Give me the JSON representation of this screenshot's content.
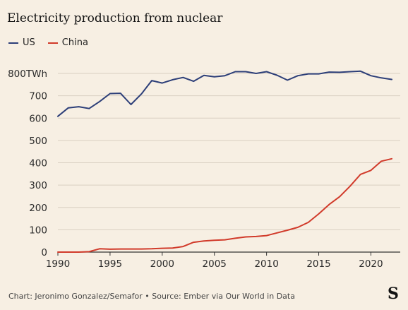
{
  "chart_data": {
    "type": "line",
    "title": "Electricity production from nuclear",
    "xlabel": "",
    "ylabel": "",
    "xlim": [
      1990,
      2022
    ],
    "ylim": [
      0,
      800
    ],
    "xticks": [
      {
        "value": 1990,
        "label": "1990"
      },
      {
        "value": 1995,
        "label": "1995"
      },
      {
        "value": 2000,
        "label": "2000"
      },
      {
        "value": 2005,
        "label": "2005"
      },
      {
        "value": 2010,
        "label": "2010"
      },
      {
        "value": 2015,
        "label": "2015"
      },
      {
        "value": 2020,
        "label": "2020"
      }
    ],
    "yticks": [
      {
        "value": 0,
        "label": "0"
      },
      {
        "value": 100,
        "label": "100"
      },
      {
        "value": 200,
        "label": "200"
      },
      {
        "value": 300,
        "label": "300"
      },
      {
        "value": 400,
        "label": "400"
      },
      {
        "value": 500,
        "label": "500"
      },
      {
        "value": 600,
        "label": "600"
      },
      {
        "value": 700,
        "label": "700"
      },
      {
        "value": 800,
        "label": "800TWh"
      }
    ],
    "grid": true,
    "legend_position": "top-left",
    "x": [
      1990,
      1991,
      1992,
      1993,
      1994,
      1995,
      1996,
      1997,
      1998,
      1999,
      2000,
      2001,
      2002,
      2003,
      2004,
      2005,
      2006,
      2007,
      2008,
      2009,
      2010,
      2011,
      2012,
      2013,
      2014,
      2015,
      2016,
      2017,
      2018,
      2019,
      2020,
      2021,
      2022
    ],
    "series": [
      {
        "name": "US",
        "color": "#2c3e78",
        "values": [
          608,
          646,
          651,
          643,
          674,
          710,
          711,
          661,
          708,
          768,
          757,
          772,
          782,
          765,
          791,
          785,
          790,
          808,
          808,
          800,
          808,
          792,
          770,
          790,
          798,
          798,
          806,
          805,
          808,
          810,
          790,
          780,
          773
        ]
      },
      {
        "name": "China",
        "color": "#d13a2a",
        "values": [
          0,
          0,
          0,
          2,
          15,
          13,
          14,
          14,
          14,
          15,
          17,
          18,
          25,
          44,
          50,
          53,
          55,
          62,
          68,
          70,
          74,
          86,
          98,
          111,
          133,
          171,
          213,
          248,
          295,
          348,
          366,
          407,
          418
        ]
      }
    ]
  },
  "footer": {
    "credit": "Chart: Jeronimo Gonzalez/Semafor • Source: Ember via Our World in Data",
    "logo": "S"
  },
  "colors": {
    "background": "#f7efe3",
    "grid": "#d9cfc1",
    "axis": "#333333"
  }
}
